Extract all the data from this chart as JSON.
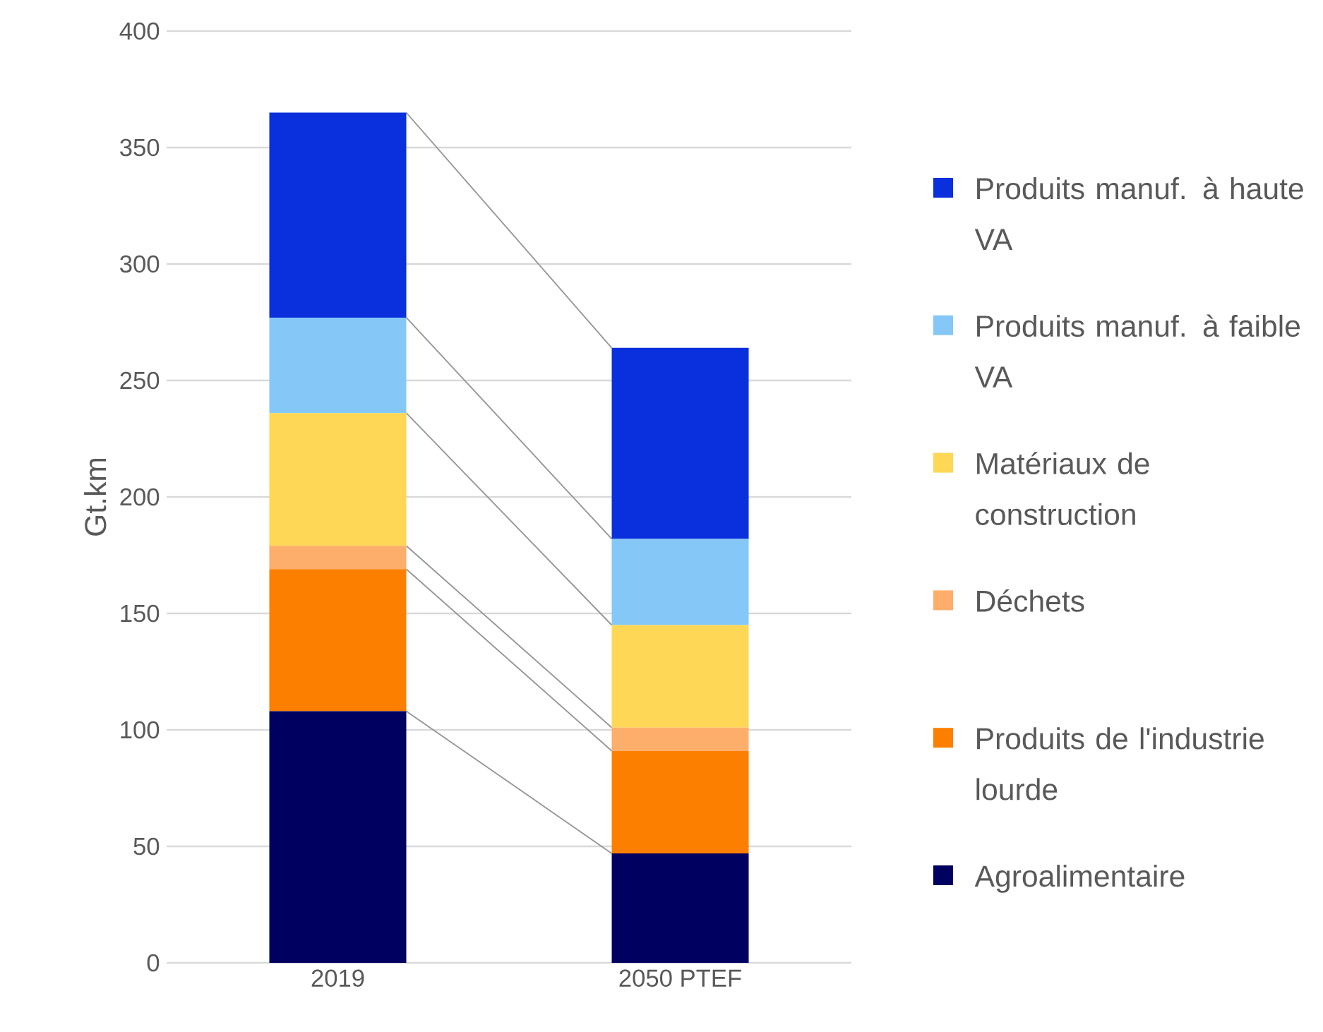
{
  "chart_data": {
    "type": "bar",
    "stacked": true,
    "ylabel": "Gt.km",
    "categories": [
      "2019",
      "2050 PTEF"
    ],
    "series": [
      {
        "name": "Agroalimentaire",
        "color": "#000060",
        "values": [
          108,
          47
        ]
      },
      {
        "name": "Produits de l'industrie lourde",
        "color": "#fd7f00",
        "values": [
          61,
          44
        ]
      },
      {
        "name": "Déchets",
        "color": "#fdae6b",
        "values": [
          10,
          10
        ]
      },
      {
        "name": "Matériaux de construction",
        "color": "#fdd755",
        "values": [
          57,
          44
        ]
      },
      {
        "name": "Produits manuf. à faible VA",
        "color": "#85c8f8",
        "values": [
          41,
          37
        ]
      },
      {
        "name": "Produits manuf. à haute VA",
        "color": "#0a2fdc",
        "values": [
          88,
          82
        ]
      }
    ],
    "ylim": [
      0,
      400
    ],
    "yticks": [
      0,
      50,
      100,
      150,
      200,
      250,
      300,
      350,
      400
    ],
    "grid": "y",
    "legend": "right"
  }
}
